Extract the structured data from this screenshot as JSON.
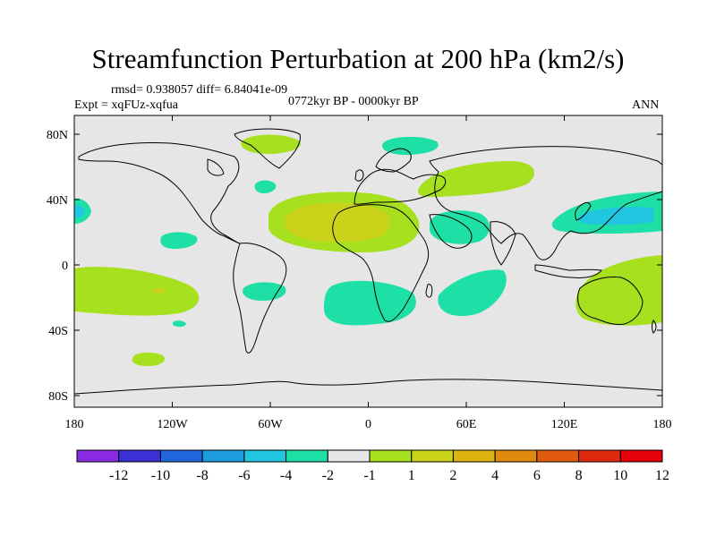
{
  "title": "Streamfunction Perturbation at 200 hPa (km2/s)",
  "stats": "rmsd= 0.938057 diff= 6.84041e-09",
  "experiment": "Expt = xqFUz-xqfua",
  "period": "0772kyr BP - 0000kyr BP",
  "season": "ANN",
  "axes": {
    "x_ticks": [
      "180",
      "120W",
      "60W",
      "0",
      "60E",
      "120E",
      "180"
    ],
    "y_ticks": [
      "80N",
      "40N",
      "0",
      "40S",
      "80S"
    ]
  },
  "colorbar": {
    "labels": [
      "-12",
      "-10",
      "-8",
      "-6",
      "-4",
      "-2",
      "-1",
      "1",
      "2",
      "4",
      "6",
      "8",
      "10",
      "12"
    ],
    "colors": [
      "#8a2be2",
      "#3b2fd6",
      "#1f66dd",
      "#1d9be0",
      "#20c6e0",
      "#1ee0a6",
      "#e6e6e6",
      "#a6e01e",
      "#c8d31a",
      "#dcb412",
      "#e08a10",
      "#e05a10",
      "#e02a10",
      "#e6000a"
    ]
  }
}
